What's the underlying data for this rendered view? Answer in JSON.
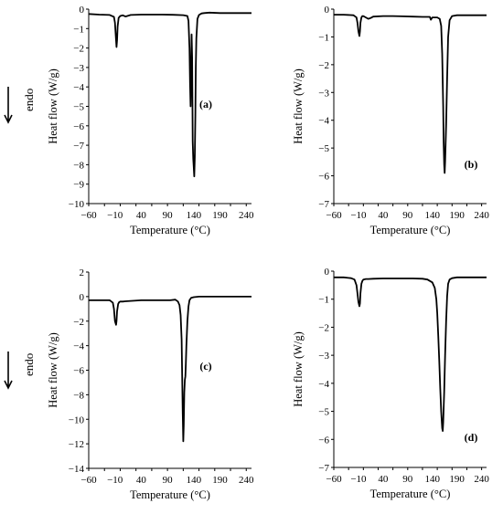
{
  "figure": {
    "endo_marker": {
      "label": "endo",
      "icon": "arrow-down-icon",
      "panels": [
        "a",
        "c"
      ]
    }
  },
  "chart_data": [
    {
      "type": "line",
      "panel": "(a)",
      "xlabel": "Temperature (°C)",
      "ylabel": "Heat flow (W/g)",
      "xlim": [
        -60,
        250
      ],
      "ylim": [
        -10,
        0
      ],
      "xticks": [
        -60,
        -30,
        0,
        30,
        60,
        90,
        120,
        150,
        180,
        210,
        240
      ],
      "xtick_labels": [
        "−60",
        "−10",
        "40",
        "90",
        "140",
        "190",
        "240"
      ],
      "xtick_label_values": [
        -60,
        -10,
        40,
        90,
        140,
        190,
        240
      ],
      "yticks": [
        0,
        -1,
        -2,
        -3,
        -4,
        -5,
        -6,
        -7,
        -8,
        -9,
        -10
      ],
      "ytick_labels": [
        "0",
        "−1",
        "−2",
        "−3",
        "−4",
        "−5",
        "−6",
        "−7",
        "−8",
        "−9",
        "−10"
      ],
      "grid": false,
      "line_color": "#000000",
      "series": [
        {
          "x": [
            -60,
            -40,
            -20,
            -12,
            -10,
            -8,
            -7,
            -6,
            -5,
            -3,
            0,
            5,
            10,
            20,
            40,
            60,
            80,
            100,
            120,
            128,
            130,
            132,
            133,
            134,
            135,
            136,
            137,
            138,
            139,
            140,
            141,
            142,
            143,
            144,
            145,
            147,
            150,
            155,
            160,
            170,
            190,
            220,
            250
          ],
          "y": [
            -0.25,
            -0.28,
            -0.3,
            -0.4,
            -0.7,
            -1.6,
            -1.95,
            -1.6,
            -0.9,
            -0.45,
            -0.35,
            -0.32,
            -0.38,
            -0.3,
            -0.28,
            -0.28,
            -0.28,
            -0.29,
            -0.31,
            -0.35,
            -0.6,
            -2.0,
            -3.8,
            -5.0,
            -3.0,
            -1.3,
            -2.5,
            -6.8,
            -7.7,
            -8.1,
            -8.6,
            -7.6,
            -5.5,
            -3.0,
            -1.5,
            -0.5,
            -0.3,
            -0.22,
            -0.2,
            -0.18,
            -0.2,
            -0.2,
            -0.2
          ]
        }
      ]
    },
    {
      "type": "line",
      "panel": "(b)",
      "xlabel": "Temperature (°C)",
      "ylabel": "Heat flow (W/g)",
      "xlim": [
        -60,
        250
      ],
      "ylim": [
        -7,
        0
      ],
      "xticks": [
        -60,
        -30,
        0,
        30,
        60,
        90,
        120,
        150,
        180,
        210,
        240
      ],
      "xtick_labels": [
        "−60",
        "−10",
        "40",
        "90",
        "140",
        "190",
        "240"
      ],
      "xtick_label_values": [
        -60,
        -10,
        40,
        90,
        140,
        190,
        240
      ],
      "yticks": [
        0,
        -1,
        -2,
        -3,
        -4,
        -5,
        -6,
        -7
      ],
      "ytick_labels": [
        "0",
        "−1",
        "−2",
        "−3",
        "−4",
        "−5",
        "−6",
        "−7"
      ],
      "grid": false,
      "line_color": "#000000",
      "series": [
        {
          "x": [
            -60,
            -40,
            -20,
            -14,
            -12,
            -10,
            -8,
            -7,
            -6,
            -4,
            -2,
            0,
            5,
            10,
            15,
            20,
            40,
            60,
            80,
            100,
            120,
            135,
            137,
            140,
            150,
            155,
            158,
            160,
            162,
            163,
            164,
            165,
            166,
            168,
            170,
            172,
            175,
            180,
            190,
            210,
            230,
            250
          ],
          "y": [
            -0.2,
            -0.2,
            -0.22,
            -0.3,
            -0.5,
            -0.8,
            -0.97,
            -0.8,
            -0.5,
            -0.3,
            -0.25,
            -0.25,
            -0.3,
            -0.35,
            -0.32,
            -0.27,
            -0.25,
            -0.25,
            -0.26,
            -0.27,
            -0.28,
            -0.28,
            -0.38,
            -0.3,
            -0.3,
            -0.35,
            -0.6,
            -1.6,
            -3.5,
            -4.8,
            -5.6,
            -5.9,
            -5.5,
            -4.2,
            -2.5,
            -1.0,
            -0.4,
            -0.25,
            -0.22,
            -0.22,
            -0.22,
            -0.22
          ]
        }
      ]
    },
    {
      "type": "line",
      "panel": "(c)",
      "xlabel": "Temperature (°C)",
      "ylabel": "Heat flow (W/g)",
      "xlim": [
        -60,
        250
      ],
      "ylim": [
        -14,
        2
      ],
      "xticks": [
        -60,
        -30,
        0,
        30,
        60,
        90,
        120,
        150,
        180,
        210,
        240
      ],
      "xtick_labels": [
        "−60",
        "−10",
        "40",
        "90",
        "140",
        "190",
        "240"
      ],
      "xtick_label_values": [
        -60,
        -10,
        40,
        90,
        140,
        190,
        240
      ],
      "yticks": [
        2,
        0,
        -2,
        -4,
        -6,
        -8,
        -10,
        -12,
        -14
      ],
      "ytick_labels": [
        "2",
        "0",
        "−2",
        "−4",
        "−6",
        "−8",
        "−10",
        "−12",
        "−14"
      ],
      "grid": false,
      "line_color": "#000000",
      "series": [
        {
          "x": [
            -60,
            -40,
            -20,
            -14,
            -12,
            -10,
            -8,
            -7,
            -6,
            -4,
            -2,
            0,
            5,
            10,
            20,
            40,
            60,
            80,
            95,
            105,
            110,
            113,
            115,
            117,
            118,
            119,
            120,
            121,
            122,
            123,
            124,
            125,
            126,
            128,
            130,
            132,
            135,
            140,
            150,
            180,
            210,
            250
          ],
          "y": [
            -0.3,
            -0.3,
            -0.3,
            -0.5,
            -1.0,
            -2.0,
            -2.3,
            -2.0,
            -1.2,
            -0.6,
            -0.45,
            -0.4,
            -0.4,
            -0.38,
            -0.35,
            -0.3,
            -0.3,
            -0.3,
            -0.3,
            -0.25,
            -0.4,
            -0.7,
            -1.5,
            -3.5,
            -6.5,
            -9.5,
            -11.8,
            -10.5,
            -7.8,
            -6.8,
            -6.5,
            -5.5,
            -4.0,
            -2.0,
            -0.8,
            -0.3,
            -0.1,
            -0.05,
            0.0,
            0.0,
            0.0,
            0.0
          ]
        }
      ]
    },
    {
      "type": "line",
      "panel": "(d)",
      "xlabel": "Temperature (°C)",
      "ylabel": "Heat flow (W/g)",
      "xlim": [
        -60,
        250
      ],
      "ylim": [
        -7,
        0
      ],
      "xticks": [
        -60,
        -30,
        0,
        30,
        60,
        90,
        120,
        150,
        180,
        210,
        240
      ],
      "xtick_labels": [
        "−60",
        "−10",
        "40",
        "90",
        "140",
        "190",
        "240"
      ],
      "xtick_label_values": [
        -60,
        -10,
        40,
        90,
        140,
        190,
        240
      ],
      "yticks": [
        0,
        -1,
        -2,
        -3,
        -4,
        -5,
        -6,
        -7
      ],
      "ytick_labels": [
        "0",
        "−1",
        "−2",
        "−3",
        "−4",
        "−5",
        "−6",
        "−7"
      ],
      "grid": false,
      "line_color": "#000000",
      "series": [
        {
          "x": [
            -60,
            -40,
            -25,
            -18,
            -14,
            -12,
            -10,
            -8,
            -7,
            -6,
            -4,
            -2,
            0,
            5,
            10,
            20,
            40,
            60,
            80,
            100,
            120,
            130,
            140,
            145,
            148,
            150,
            152,
            154,
            156,
            158,
            160,
            161,
            162,
            164,
            166,
            168,
            170,
            172,
            175,
            180,
            190,
            210,
            230,
            250
          ],
          "y": [
            -0.22,
            -0.22,
            -0.25,
            -0.3,
            -0.5,
            -0.8,
            -1.1,
            -1.25,
            -1.15,
            -0.8,
            -0.45,
            -0.35,
            -0.3,
            -0.28,
            -0.28,
            -0.27,
            -0.26,
            -0.26,
            -0.26,
            -0.26,
            -0.27,
            -0.3,
            -0.4,
            -0.6,
            -1.0,
            -1.5,
            -2.3,
            -3.2,
            -4.2,
            -5.0,
            -5.6,
            -5.7,
            -5.4,
            -4.3,
            -3.0,
            -1.8,
            -0.9,
            -0.45,
            -0.3,
            -0.25,
            -0.22,
            -0.22,
            -0.22,
            -0.22
          ]
        }
      ]
    }
  ]
}
